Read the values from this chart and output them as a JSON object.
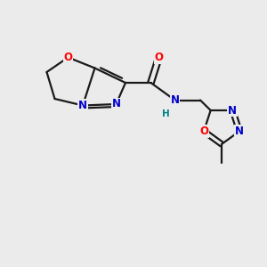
{
  "background_color": "#ebebeb",
  "bond_color": "#1a1a1a",
  "atom_colors": {
    "O": "#ff0000",
    "N": "#0000cc",
    "H": "#008080",
    "C": "#1a1a1a"
  },
  "figsize": [
    3.0,
    3.0
  ],
  "dpi": 100,
  "xlim": [
    0,
    10
  ],
  "ylim": [
    0,
    10
  ]
}
